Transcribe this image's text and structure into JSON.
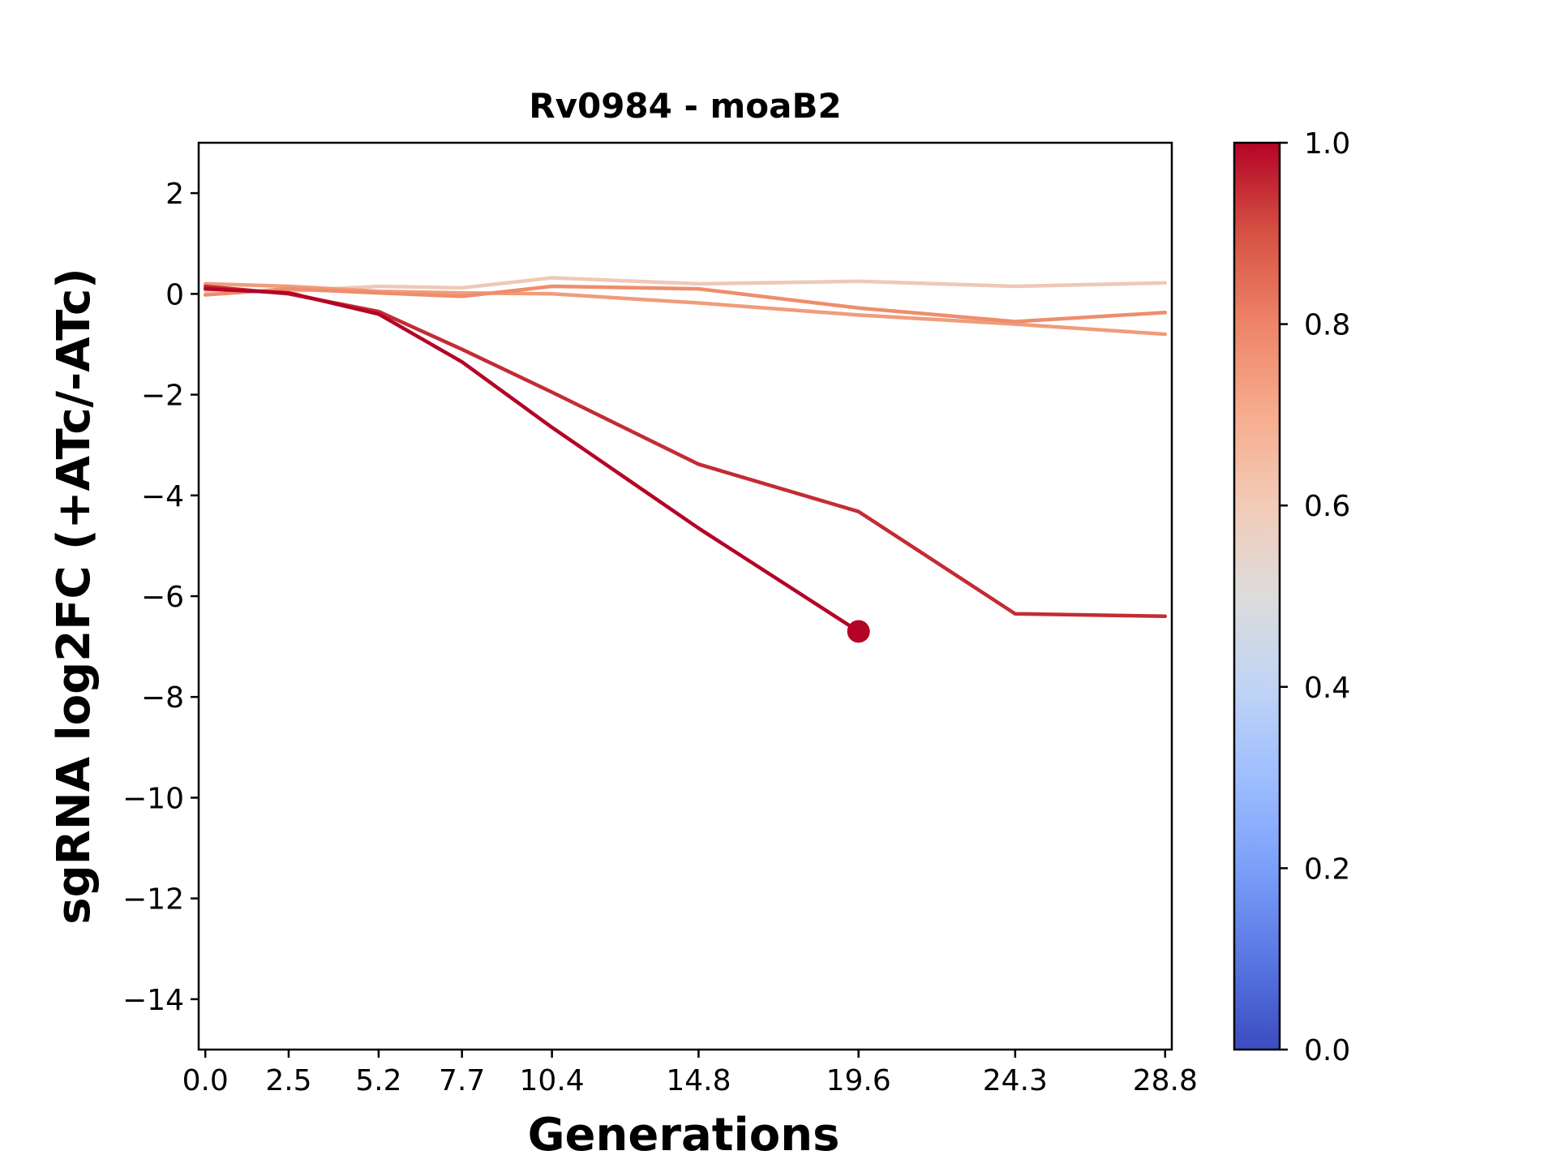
{
  "chart_data": {
    "type": "line",
    "title": "Rv0984 - moaB2",
    "xlabel": "Generations",
    "ylabel": "sgRNA log2FC (+ATc/-ATc)",
    "xlim": [
      -0.2,
      29.0
    ],
    "ylim": [
      -15,
      3
    ],
    "x_ticks": [
      0.0,
      2.5,
      5.2,
      7.7,
      10.4,
      14.8,
      19.6,
      24.3,
      28.8
    ],
    "x_tick_labels": [
      "0.0",
      "2.5",
      "5.2",
      "7.7",
      "10.4",
      "14.8",
      "19.6",
      "24.3",
      "28.8"
    ],
    "y_ticks": [
      2,
      0,
      -2,
      -4,
      -6,
      -8,
      -10,
      -12,
      -14
    ],
    "y_tick_labels": [
      "2",
      "0",
      "−2",
      "−4",
      "−6",
      "−8",
      "−10",
      "−12",
      "−14"
    ],
    "grid": false,
    "colorbar": {
      "colormap": "coolwarm",
      "range": [
        0.0,
        1.0
      ],
      "ticks": [
        0.0,
        0.2,
        0.4,
        0.6,
        0.8,
        1.0
      ],
      "tick_labels": [
        "0.0",
        "0.2",
        "0.4",
        "0.6",
        "0.8",
        "1.0"
      ]
    },
    "series": [
      {
        "color_value": 0.62,
        "color": "#eec9b6",
        "x": [
          0.0,
          2.5,
          5.2,
          7.7,
          10.4,
          14.8,
          19.6,
          24.3,
          28.8
        ],
        "y": [
          0.05,
          0.05,
          0.15,
          0.12,
          0.32,
          0.2,
          0.25,
          0.15,
          0.22
        ]
      },
      {
        "color_value": 0.78,
        "color": "#f09c7b",
        "x": [
          0.0,
          2.5,
          5.2,
          7.7,
          10.4,
          14.8,
          19.6,
          24.3,
          28.8
        ],
        "y": [
          0.2,
          0.15,
          0.05,
          0.02,
          0.0,
          -0.18,
          -0.42,
          -0.6,
          -0.8
        ]
      },
      {
        "color_value": 0.8,
        "color": "#ee8d6c",
        "x": [
          0.0,
          2.5,
          5.2,
          7.7,
          10.4,
          14.8,
          19.6,
          24.3,
          28.8
        ],
        "y": [
          -0.02,
          0.1,
          0.02,
          -0.05,
          0.15,
          0.1,
          -0.28,
          -0.55,
          -0.37
        ]
      },
      {
        "color_value": 0.95,
        "color": "#c32c34",
        "x": [
          0.0,
          2.5,
          5.2,
          7.7,
          10.4,
          14.8,
          19.6,
          24.3,
          28.8
        ],
        "y": [
          0.15,
          0.0,
          -0.35,
          -1.1,
          -1.95,
          -3.38,
          -4.32,
          -6.35,
          -6.4
        ]
      },
      {
        "color_value": 1.0,
        "color": "#b40426",
        "x": [
          0.0,
          2.5,
          5.2,
          7.7,
          10.4,
          14.8,
          19.6
        ],
        "y": [
          0.1,
          0.02,
          -0.4,
          -1.35,
          -2.65,
          -4.65,
          -6.7
        ],
        "end_marker": true
      }
    ]
  }
}
